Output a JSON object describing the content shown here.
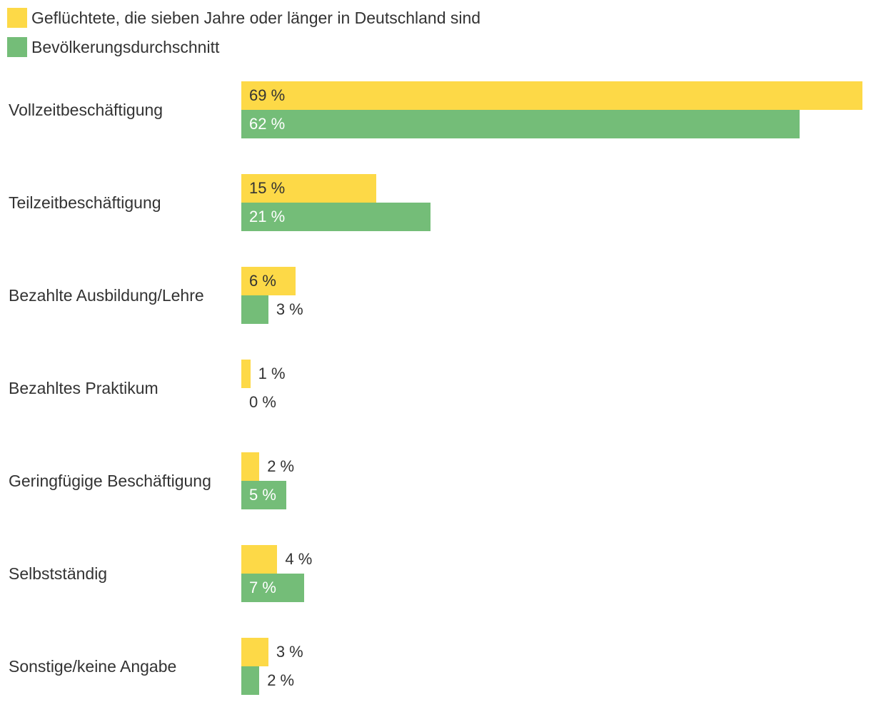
{
  "chart_data": {
    "type": "bar",
    "orientation": "horizontal",
    "title": "",
    "xlabel": "",
    "ylabel": "",
    "xlim": [
      0,
      69
    ],
    "grid": false,
    "legend_position": "top-left",
    "value_suffix": " %",
    "categories": [
      "Vollzeitbeschäftigung",
      "Teilzeitbeschäftigung",
      "Bezahlte Ausbildung/Lehre",
      "Bezahltes Praktikum",
      "Geringfügige Beschäftigung",
      "Selbstständig",
      "Sonstige/keine Angabe"
    ],
    "series": [
      {
        "name": "Geflüchtete, die sieben Jahre oder länger in Deutschland sind",
        "color": "#FDD947",
        "label_color": "#333333",
        "values": [
          69,
          15,
          6,
          1,
          2,
          4,
          3
        ]
      },
      {
        "name": "Bevölkerungsdurchschnitt",
        "color": "#74BD78",
        "label_color": "#ffffff",
        "values": [
          62,
          21,
          3,
          0,
          5,
          7,
          2
        ]
      }
    ]
  }
}
